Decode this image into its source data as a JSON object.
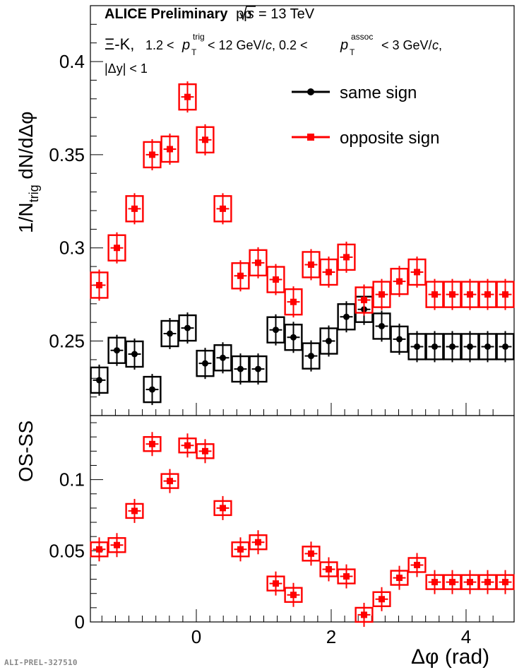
{
  "header": {
    "collab": "ALICE Preliminary",
    "system": "pp",
    "sqrt_s_value": "= 13 TeV",
    "particles": "Ξ-K,",
    "kin_text1": "1.2 <",
    "kin_text2": "< 12 GeV/",
    "kin_text3": ", 0.2 <",
    "kin_text4": "< 3 GeV/",
    "c_symbol": "c",
    "trig_sup": "trig",
    "assoc_sup": "assoc",
    "T_sub": "T",
    "p_symbol": "p",
    "rapidity": "|Δy| < 1"
  },
  "preliminary_id": "ALI-PREL-327510",
  "colors": {
    "same_sign": "#000000",
    "opposite_sign": "#ff0000",
    "axis": "#000000"
  },
  "chart_data": [
    {
      "type": "scatter",
      "panel": "top",
      "ylabel_text": "1/N",
      "ylabel_sub": "trig",
      "ylabel_rest": " dN/dΔφ",
      "ylim": [
        0.21,
        0.43
      ],
      "yticks": [
        0.25,
        0.3,
        0.35,
        0.4
      ],
      "ytick_labels": [
        "0.25",
        "0.3",
        "0.35",
        "0.4"
      ],
      "xlim": [
        -1.5708,
        4.7124
      ],
      "legend_position": "top-right",
      "x": [
        -1.4399,
        -1.1781,
        -0.9163,
        -0.6545,
        -0.3927,
        -0.1309,
        0.1309,
        0.3927,
        0.6545,
        0.9163,
        1.1781,
        1.4399,
        1.7017,
        1.9635,
        2.2253,
        2.4871,
        2.7489,
        3.0107,
        3.2725,
        3.5343,
        3.7961,
        4.0579,
        4.3197,
        4.5815
      ],
      "series": [
        {
          "name": "same sign",
          "color": "#000000",
          "marker": "circle",
          "values": [
            0.229,
            0.245,
            0.243,
            0.224,
            0.254,
            0.257,
            0.238,
            0.241,
            0.235,
            0.235,
            0.256,
            0.252,
            0.242,
            0.25,
            0.263,
            0.267,
            0.258,
            0.251,
            0.247,
            0.247,
            0.247,
            0.247,
            0.247,
            0.247
          ]
        },
        {
          "name": "opposite sign",
          "color": "#ff0000",
          "marker": "square",
          "values": [
            0.28,
            0.3,
            0.321,
            0.35,
            0.353,
            0.381,
            0.358,
            0.321,
            0.285,
            0.292,
            0.283,
            0.271,
            0.291,
            0.287,
            0.295,
            0.272,
            0.275,
            0.282,
            0.287,
            0.275,
            0.275,
            0.275,
            0.275,
            0.275
          ]
        }
      ]
    },
    {
      "type": "scatter",
      "panel": "bottom",
      "ylabel": "OS-SS",
      "xlabel": "Δφ (rad)",
      "ylim": [
        0,
        0.145
      ],
      "yticks": [
        0,
        0.05,
        0.1
      ],
      "ytick_labels": [
        "0",
        "0.05",
        "0.1"
      ],
      "xlim": [
        -1.5708,
        4.7124
      ],
      "xticks": [
        0,
        2,
        4
      ],
      "xtick_labels": [
        "0",
        "2",
        "4"
      ],
      "x": [
        -1.4399,
        -1.1781,
        -0.9163,
        -0.6545,
        -0.3927,
        -0.1309,
        0.1309,
        0.3927,
        0.6545,
        0.9163,
        1.1781,
        1.4399,
        1.7017,
        1.9635,
        2.2253,
        2.4871,
        2.7489,
        3.0107,
        3.2725,
        3.5343,
        3.7961,
        4.0579,
        4.3197,
        4.5815
      ],
      "series": [
        {
          "color": "#ff0000",
          "marker": "square",
          "values": [
            0.051,
            0.054,
            0.078,
            0.125,
            0.099,
            0.124,
            0.12,
            0.08,
            0.051,
            0.056,
            0.027,
            0.019,
            0.048,
            0.037,
            0.032,
            0.005,
            0.016,
            0.031,
            0.04,
            0.028,
            0.028,
            0.028,
            0.028,
            0.028
          ]
        }
      ]
    }
  ]
}
